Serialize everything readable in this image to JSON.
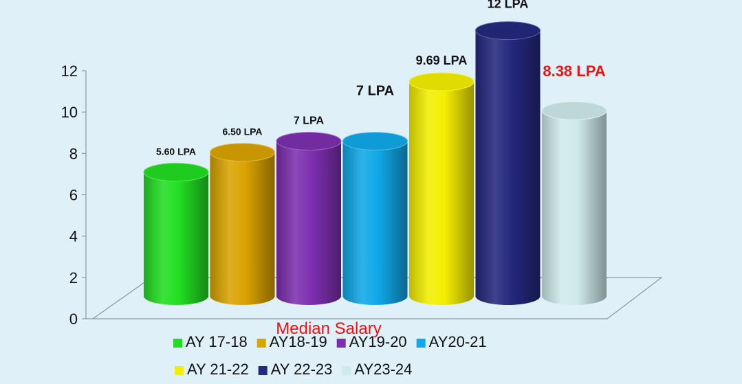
{
  "chart_data": {
    "type": "bar",
    "categories": [
      "AY 17-18",
      "AY18-19",
      "AY19-20",
      "AY20-21",
      "AY 21-22",
      "AY 22-23",
      "AY23-24"
    ],
    "values": [
      5.6,
      6.5,
      7,
      7,
      9.69,
      12,
      8.38
    ],
    "data_labels": [
      "5.60 LPA",
      "6.50 LPA",
      "7 LPA",
      "7 LPA",
      "9.69 LPA",
      "12 LPA",
      "8.38 LPA"
    ],
    "colors": [
      "#22dd22",
      "#d9a300",
      "#7d2fb0",
      "#10a8e8",
      "#f4ee00",
      "#25287e",
      "#cfeaea"
    ],
    "data_label_colors": [
      "#111111",
      "#111111",
      "#111111",
      "#111111",
      "#111111",
      "#111111",
      "#ee1111"
    ],
    "y_ticks": [
      "0",
      "2",
      "4",
      "6",
      "8",
      "10",
      "12"
    ],
    "ylim": [
      0,
      12
    ],
    "xlabel": "Median Salary",
    "xlabel_color": "#ee1111",
    "legend_position": "bottom",
    "grid": false
  }
}
